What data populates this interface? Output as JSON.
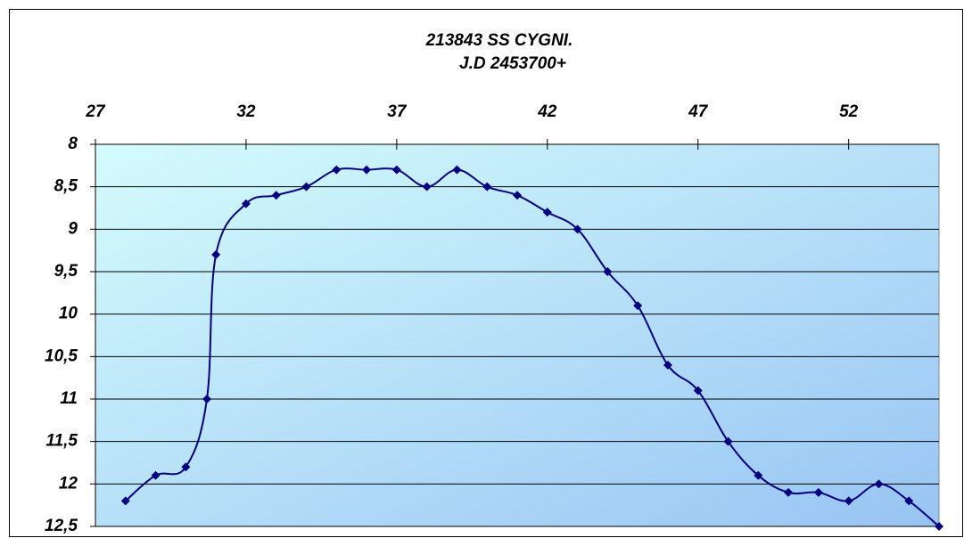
{
  "chart_data": {
    "type": "line",
    "title": "213843  SS CYGNI.",
    "subtitle": "J.D 2453700+",
    "x": [
      28,
      29,
      30,
      30.7,
      31,
      32,
      33,
      34,
      35,
      36,
      37,
      38,
      39,
      40,
      41,
      42,
      43,
      44,
      45,
      46,
      47,
      48,
      49,
      50,
      51,
      52,
      53,
      54,
      55
    ],
    "series": [
      {
        "name": "SS CYGNI",
        "color": "#000080",
        "values": [
          12.2,
          11.9,
          11.8,
          11,
          9.3,
          8.7,
          8.6,
          8.5,
          8.3,
          8.3,
          8.3,
          8.5,
          8.3,
          8.5,
          8.6,
          8.8,
          9,
          9.5,
          9.9,
          10.6,
          10.9,
          11.5,
          11.9,
          12.1,
          12.1,
          12.2,
          12,
          12.2,
          12.5
        ]
      }
    ],
    "xlim": [
      27,
      55
    ],
    "xticks": [
      27,
      32,
      37,
      42,
      47,
      52
    ],
    "x_axis_position": "top",
    "ylim": [
      8,
      12.5
    ],
    "y_inverted": true,
    "yticks": [
      8,
      {
        "value": 8.5,
        "label": "8,5"
      },
      9,
      {
        "value": 9.5,
        "label": "9,5"
      },
      10,
      {
        "value": 10.5,
        "label": "10,5"
      },
      11,
      {
        "value": 11.5,
        "label": "11,5"
      },
      12,
      {
        "value": 12.5,
        "label": "12,5"
      }
    ],
    "grid": true
  }
}
